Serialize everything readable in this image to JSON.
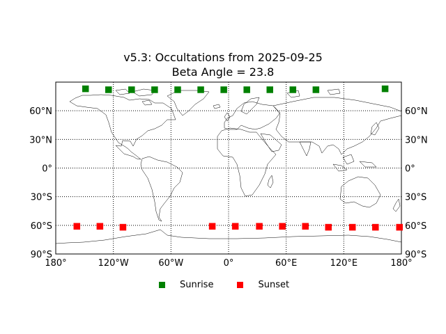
{
  "chart_data": {
    "type": "scatter",
    "projection": "equirectangular",
    "title": "v5.3: Occultations from 2025-09-25",
    "subtitle": "Beta Angle = 23.8",
    "xlim": [
      -180,
      180
    ],
    "ylim": [
      -90,
      90
    ],
    "grid": true,
    "grid_style": "dotted",
    "x_ticks": [
      {
        "value": -180,
        "label": "180°"
      },
      {
        "value": -120,
        "label": "120°W"
      },
      {
        "value": -60,
        "label": "60°W"
      },
      {
        "value": 0,
        "label": "0°"
      },
      {
        "value": 60,
        "label": "60°E"
      },
      {
        "value": 120,
        "label": "120°E"
      },
      {
        "value": 180,
        "label": "180°"
      }
    ],
    "y_ticks": [
      {
        "value": 60,
        "label": "60°N"
      },
      {
        "value": 30,
        "label": "30°N"
      },
      {
        "value": 0,
        "label": "0°"
      },
      {
        "value": -30,
        "label": "30°S"
      },
      {
        "value": -60,
        "label": "60°S"
      },
      {
        "value": -90,
        "label": "90°S"
      }
    ],
    "legend_position": "bottom-center",
    "series": [
      {
        "name": "Sunrise",
        "color": "#008000",
        "marker": "square",
        "points": [
          {
            "x": -149,
            "y": 83
          },
          {
            "x": -125,
            "y": 82
          },
          {
            "x": -101,
            "y": 82
          },
          {
            "x": -77,
            "y": 82
          },
          {
            "x": -53,
            "y": 82
          },
          {
            "x": -29,
            "y": 82
          },
          {
            "x": -5,
            "y": 82
          },
          {
            "x": 19,
            "y": 82
          },
          {
            "x": 43,
            "y": 82
          },
          {
            "x": 67,
            "y": 82
          },
          {
            "x": 91,
            "y": 82
          },
          {
            "x": 163,
            "y": 83
          }
        ]
      },
      {
        "name": "Sunset",
        "color": "#ff0000",
        "marker": "square",
        "points": [
          {
            "x": -158,
            "y": -61
          },
          {
            "x": -134,
            "y": -61
          },
          {
            "x": -110,
            "y": -62
          },
          {
            "x": -17,
            "y": -61
          },
          {
            "x": 7,
            "y": -61
          },
          {
            "x": 32,
            "y": -61
          },
          {
            "x": 56,
            "y": -61
          },
          {
            "x": 80,
            "y": -61
          },
          {
            "x": 104,
            "y": -62
          },
          {
            "x": 129,
            "y": -62
          },
          {
            "x": 153,
            "y": -62
          },
          {
            "x": 178,
            "y": -62
          }
        ]
      }
    ]
  }
}
